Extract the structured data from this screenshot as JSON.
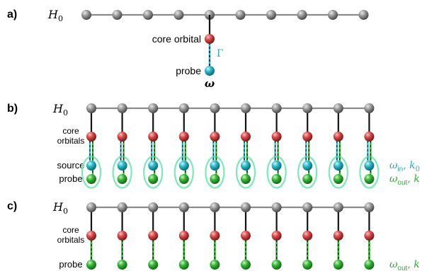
{
  "panels": {
    "a": {
      "label": "a)",
      "hamiltonian": "H",
      "hamiltonian_sub": "0",
      "core_label": "core orbital",
      "coupling_label": "Γ",
      "probe_label": "probe",
      "frequency_label": "ω"
    },
    "b": {
      "label": "b)",
      "hamiltonian": "H",
      "hamiltonian_sub": "0",
      "core_label_line1": "core",
      "core_label_line2": "orbitals",
      "source_label": "source",
      "probe_label": "probe",
      "in_symbol": "ω",
      "in_sub": "in",
      "in_k": ", k",
      "in_k_sub": "0",
      "out_symbol": "ω",
      "out_sub": "out",
      "out_k": ", k"
    },
    "c": {
      "label": "c)",
      "hamiltonian": "H",
      "hamiltonian_sub": "0",
      "core_label_line1": "core",
      "core_label_line2": "orbitals",
      "probe_label": "probe",
      "out_symbol": "ω",
      "out_sub": "out",
      "out_k": ", k"
    }
  },
  "colors": {
    "lattice_site": "#8a8a8a",
    "core_orbital": "#d04040",
    "source_probe": "#2ab8c6",
    "out_probe": "#2fae2f",
    "ellipse": "#7de8b8",
    "coupling_dash": "#111111",
    "label_cyan": "#2aa8c0",
    "label_green": "#2fae2f"
  },
  "lattice": {
    "sites_a": 10,
    "sites_bc": 10
  }
}
